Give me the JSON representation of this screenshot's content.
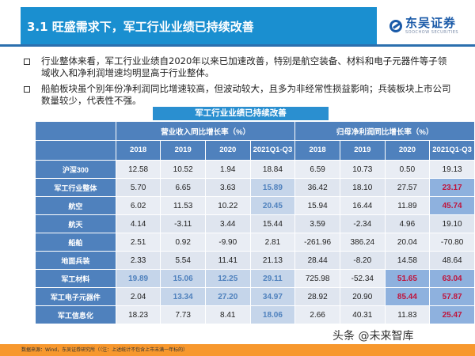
{
  "header": {
    "title": "3.1 旺盛需求下，军工行业业绩已持续改善",
    "logo_cn": "东吴证券",
    "logo_en": "SOOCHOW SECURITIES"
  },
  "bullets": [
    "行业整体来看，军工行业业绩自2020年以来已加速改善，特别是航空装备、材料和电子元器件等子领域收入和净利润增速均明显高于行业整体。",
    "船舶板块虽个别年份净利润同比增速较高，但波动较大，且多为非经常性损益影响；兵装板块上市公司数量较少，代表性不强。"
  ],
  "table": {
    "caption": "军工行业业绩已持续改善",
    "group_headers": [
      "营业收入同比增长率（%）",
      "归母净利润同比增长率（%）"
    ],
    "year_headers": [
      "2018",
      "2019",
      "2020",
      "2021Q1-Q3",
      "2018",
      "2019",
      "2020",
      "2021Q1-Q3"
    ],
    "rows": [
      {
        "name": "沪深300",
        "values": [
          "12.58",
          "10.52",
          "1.94",
          "18.84",
          "6.59",
          "10.73",
          "0.50",
          "19.13"
        ]
      },
      {
        "name": "军工行业整体",
        "values": [
          "5.70",
          "6.65",
          "3.63",
          "15.89",
          "36.42",
          "18.10",
          "27.57",
          "23.17"
        ]
      },
      {
        "name": "航空",
        "values": [
          "6.02",
          "11.53",
          "10.22",
          "20.45",
          "15.94",
          "16.44",
          "11.89",
          "45.74"
        ]
      },
      {
        "name": "航天",
        "values": [
          "4.14",
          "-3.11",
          "3.44",
          "15.44",
          "3.59",
          "-2.34",
          "4.96",
          "19.10"
        ]
      },
      {
        "name": "船舶",
        "values": [
          "2.51",
          "0.92",
          "-9.90",
          "2.81",
          "-261.96",
          "386.24",
          "20.04",
          "-70.80"
        ]
      },
      {
        "name": "地面兵装",
        "values": [
          "2.33",
          "5.54",
          "11.41",
          "21.13",
          "28.44",
          "-8.20",
          "14.58",
          "48.64"
        ]
      },
      {
        "name": "军工材料",
        "values": [
          "19.89",
          "15.06",
          "12.25",
          "29.11",
          "725.98",
          "-52.34",
          "51.65",
          "63.04"
        ]
      },
      {
        "name": "军工电子元器件",
        "values": [
          "2.04",
          "13.34",
          "27.20",
          "34.97",
          "28.92",
          "20.90",
          "85.44",
          "57.87"
        ]
      },
      {
        "name": "军工信息化",
        "values": [
          "18.23",
          "7.73",
          "8.41",
          "18.06",
          "2.66",
          "40.31",
          "11.83",
          "25.47"
        ]
      }
    ]
  },
  "colors": {
    "title_bar": "#1a8fd0",
    "table_header": "#4f81bd",
    "highlight_blue_text": "#4f81bd",
    "highlight_red_text": "#c0143c",
    "footer_bar": "#f7982e"
  },
  "watermark": "头条 @未来智库",
  "footer": "数据来源：Wind，东吴证券研究所（（注：上述统计不包含上市未满一年标的）"
}
